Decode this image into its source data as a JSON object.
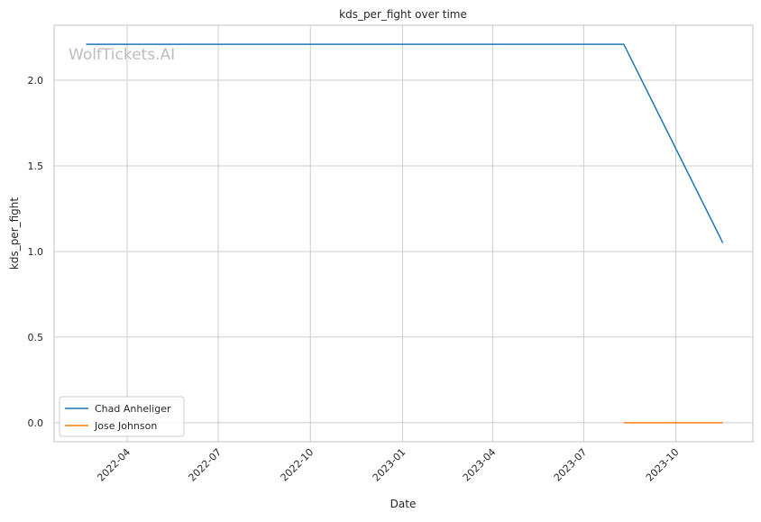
{
  "chart_data": {
    "type": "line",
    "title": "kds_per_fight over time",
    "xlabel": "Date",
    "ylabel": "kds_per_fight",
    "xlim": [
      "2022-01-18",
      "2023-12-17"
    ],
    "ylim": [
      -0.111,
      2.321
    ],
    "x_ticks": [
      "2022-04",
      "2022-07",
      "2022-10",
      "2023-01",
      "2023-04",
      "2023-07",
      "2023-10"
    ],
    "y_ticks": [
      "0.0",
      "0.5",
      "1.0",
      "1.5",
      "2.0"
    ],
    "grid": true,
    "legend_placement": "lower-left",
    "watermark": "WolfTickets.AI",
    "series": [
      {
        "name": "Chad Anheliger",
        "color": "#1f77b4",
        "x": [
          "2022-02-19",
          "2023-08-10",
          "2023-11-17"
        ],
        "y": [
          2.21,
          2.21,
          1.05
        ]
      },
      {
        "name": "Jose Johnson",
        "color": "#ff7f0e",
        "x": [
          "2023-08-10",
          "2023-11-17"
        ],
        "y": [
          0.0,
          0.0
        ]
      }
    ]
  }
}
